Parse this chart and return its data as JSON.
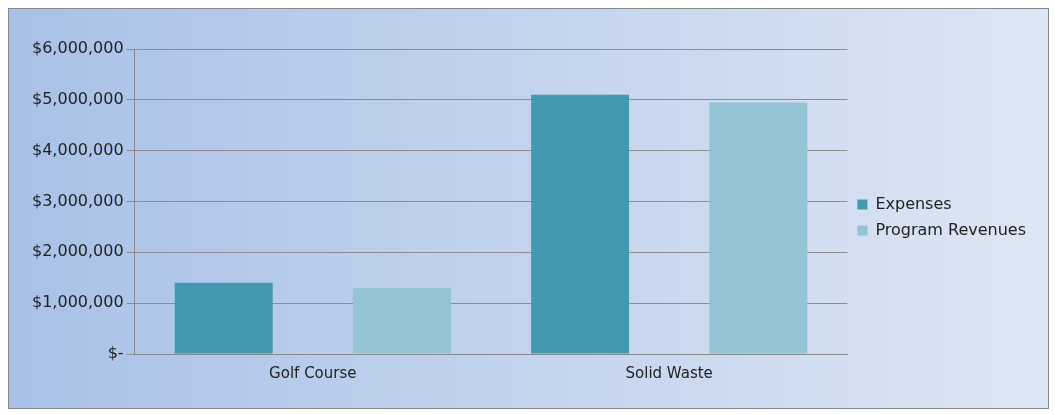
{
  "chart_data": {
    "type": "bar",
    "categories": [
      "Golf Course",
      "Solid Waste"
    ],
    "series": [
      {
        "name": "Expenses",
        "color": "#4299b0",
        "values": [
          1400000,
          5100000
        ]
      },
      {
        "name": "Program Revenues",
        "color": "#93c4d4",
        "values": [
          1300000,
          4950000
        ]
      }
    ],
    "ylim": [
      0,
      6000000
    ],
    "yticks": [
      {
        "value": 0,
        "label": "$-"
      },
      {
        "value": 1000000,
        "label": "$1,000,000"
      },
      {
        "value": 2000000,
        "label": "$2,000,000"
      },
      {
        "value": 3000000,
        "label": "$3,000,000"
      },
      {
        "value": 4000000,
        "label": "$4,000,000"
      },
      {
        "value": 5000000,
        "label": "$5,000,000"
      },
      {
        "value": 6000000,
        "label": "$6,000,000"
      }
    ],
    "grid": "y",
    "legend": "right"
  }
}
